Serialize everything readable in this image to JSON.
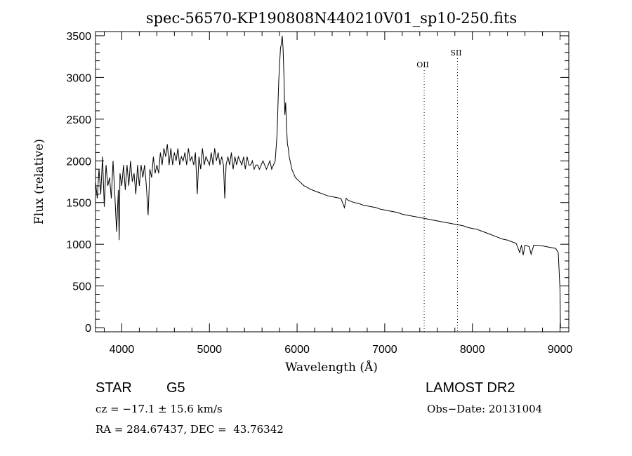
{
  "chart_data": {
    "type": "line",
    "title": "spec-56570-KP190808N440210V01_sp10-250.fits",
    "xlabel": "Wavelength (Å)",
    "ylabel": "Flux (relative)",
    "xlim": [
      3700,
      9100
    ],
    "ylim": [
      -50,
      3550
    ],
    "xticks": [
      4000,
      5000,
      6000,
      7000,
      8000,
      9000
    ],
    "yticks": [
      0,
      500,
      1000,
      1500,
      2000,
      2500,
      3000,
      3500
    ],
    "grid": false,
    "series": [
      {
        "x": [
          3700,
          3720,
          3740,
          3760,
          3780,
          3800,
          3820,
          3840,
          3860,
          3880,
          3900,
          3920,
          3940,
          3960,
          3970,
          3980,
          4000,
          4020,
          4040,
          4060,
          4080,
          4100,
          4120,
          4140,
          4160,
          4180,
          4200,
          4220,
          4240,
          4260,
          4280,
          4300,
          4320,
          4340,
          4360,
          4380,
          4400,
          4420,
          4440,
          4460,
          4480,
          4500,
          4520,
          4540,
          4560,
          4580,
          4600,
          4620,
          4640,
          4660,
          4680,
          4700,
          4720,
          4740,
          4760,
          4780,
          4800,
          4820,
          4840,
          4861,
          4880,
          4900,
          4920,
          4940,
          4960,
          4980,
          5000,
          5020,
          5040,
          5060,
          5080,
          5100,
          5120,
          5140,
          5160,
          5175,
          5190,
          5210,
          5230,
          5250,
          5270,
          5290,
          5310,
          5330,
          5350,
          5370,
          5390,
          5410,
          5430,
          5450,
          5470,
          5490,
          5510,
          5530,
          5550,
          5570,
          5590,
          5610,
          5630,
          5650,
          5670,
          5690,
          5710,
          5730,
          5750,
          5770,
          5780,
          5790,
          5800,
          5810,
          5820,
          5830,
          5840,
          5850,
          5860,
          5870,
          5880,
          5890,
          5900,
          5910,
          5920,
          5940,
          5960,
          5980,
          6000,
          6020,
          6040,
          6060,
          6080,
          6100,
          6150,
          6200,
          6250,
          6300,
          6350,
          6400,
          6450,
          6500,
          6540,
          6560,
          6580,
          6600,
          6650,
          6700,
          6750,
          6800,
          6850,
          6900,
          6950,
          7000,
          7050,
          7100,
          7150,
          7200,
          7250,
          7300,
          7350,
          7400,
          7450,
          7500,
          7550,
          7600,
          7650,
          7700,
          7750,
          7800,
          7850,
          7900,
          7950,
          8000,
          8050,
          8100,
          8150,
          8200,
          8250,
          8300,
          8350,
          8400,
          8450,
          8500,
          8540,
          8560,
          8580,
          8600,
          8650,
          8670,
          8700,
          8750,
          8800,
          8850,
          8900,
          8950,
          8980,
          9000,
          9005
        ],
        "y": [
          1750,
          1550,
          1900,
          1600,
          2050,
          1450,
          1950,
          1700,
          1800,
          1550,
          2000,
          1600,
          1150,
          1650,
          1050,
          1850,
          1700,
          1950,
          1650,
          1950,
          1700,
          2000,
          1750,
          1850,
          1600,
          1950,
          1700,
          1950,
          1800,
          1950,
          1700,
          1350,
          1900,
          1800,
          2050,
          1850,
          1950,
          1850,
          2100,
          1950,
          2150,
          2050,
          2200,
          1950,
          2150,
          1950,
          2100,
          2000,
          2150,
          1950,
          2050,
          2000,
          2100,
          1950,
          2150,
          2000,
          2050,
          1950,
          2100,
          1600,
          2050,
          1900,
          2150,
          1950,
          2050,
          2000,
          1950,
          2100,
          1950,
          2150,
          2000,
          2100,
          1950,
          2050,
          1950,
          1550,
          1950,
          2050,
          1950,
          2100,
          1900,
          2050,
          1950,
          2050,
          2000,
          1950,
          2050,
          1900,
          2050,
          1950,
          1950,
          2000,
          1900,
          1950,
          1950,
          1900,
          1950,
          2000,
          1950,
          1900,
          1950,
          2000,
          1900,
          1950,
          2000,
          2300,
          2600,
          2950,
          3150,
          3350,
          3400,
          3500,
          3350,
          3000,
          2550,
          2700,
          2400,
          2200,
          2150,
          2050,
          2000,
          1900,
          1850,
          1800,
          1780,
          1760,
          1740,
          1720,
          1700,
          1690,
          1660,
          1640,
          1620,
          1600,
          1580,
          1570,
          1560,
          1550,
          1440,
          1550,
          1530,
          1520,
          1500,
          1490,
          1470,
          1460,
          1450,
          1440,
          1420,
          1410,
          1400,
          1390,
          1380,
          1360,
          1350,
          1340,
          1330,
          1320,
          1310,
          1300,
          1290,
          1280,
          1270,
          1260,
          1250,
          1240,
          1230,
          1220,
          1200,
          1190,
          1180,
          1160,
          1140,
          1120,
          1100,
          1080,
          1060,
          1050,
          1030,
          1010,
          900,
          990,
          870,
          990,
          970,
          880,
          990,
          985,
          980,
          970,
          960,
          950,
          900,
          450,
          0
        ]
      }
    ],
    "annotations": [
      {
        "label": "OII",
        "x": 7450
      },
      {
        "label": "SII",
        "x": 7830
      }
    ],
    "info": {
      "class": "STAR",
      "subclass": "G5",
      "survey": "LAMOST DR2",
      "cz": "cz = −17.1 ± 15.6 km/s",
      "obs_date": "Obs−Date: 20131004",
      "radec": "RA = 284.67437, DEC =  43.76342"
    }
  }
}
